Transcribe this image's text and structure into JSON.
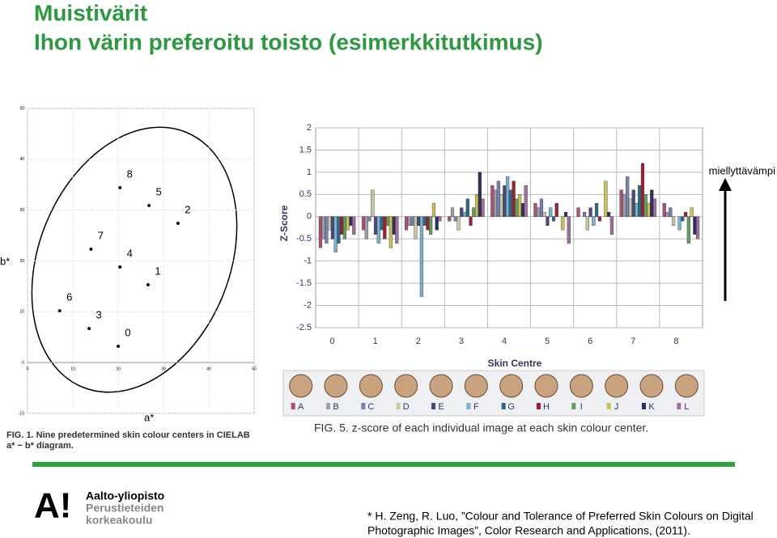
{
  "title": "Muistivärit",
  "subtitle": "Ihon värin preferoitu toisto (esimerkkitutkimus)",
  "annotation": "miellyttävämpi",
  "citation": [
    "* H. Zeng, R. Luo, ”Colour and Tolerance of Preferred Skin Colours on Digital",
    "Photographic Images”, Color Research and Applications, (2011)."
  ],
  "logo": {
    "mark": "A!",
    "lines": [
      "Aalto-yliopisto",
      "Perustieteiden",
      "korkeakoulu"
    ]
  },
  "chart_data": [
    {
      "type": "scatter",
      "xlabel": "a*",
      "ylabel": "b*",
      "caption": [
        "FIG. 1.  Nine predetermined skin colour centers in CIELAB",
        "a* − b* diagram."
      ],
      "point_labels": [
        "0",
        "1",
        "2",
        "3",
        "4",
        "5",
        "6",
        "7",
        "8"
      ],
      "x": [
        20,
        26.6,
        33.2,
        13.6,
        20.4,
        26.8,
        7.1,
        14,
        20.4
      ],
      "values": [
        3.2,
        15.3,
        27.4,
        6.7,
        18.8,
        30.9,
        10.2,
        22.3,
        34.4
      ],
      "color": "#111111",
      "xlim": [
        0,
        50
      ],
      "xticks": [
        0,
        10,
        20,
        30,
        40,
        50
      ],
      "ylim": [
        -10,
        50
      ],
      "yticks": [
        -10,
        0,
        10,
        20,
        30,
        40,
        50
      ],
      "grid": true
    },
    {
      "type": "bar",
      "xlabel": "Skin Centre",
      "ylabel": "Z-Score",
      "caption": "FIG. 5.  z-score of each individual image at each skin colour center.",
      "categories": [
        "0",
        "1",
        "2",
        "3",
        "4",
        "5",
        "6",
        "7",
        "8"
      ],
      "ylim": [
        -2.5,
        2
      ],
      "yticks": [
        2,
        1.5,
        1,
        0.5,
        0,
        -0.5,
        -1,
        -1.5,
        -2,
        -2.5
      ],
      "grid": true,
      "series": [
        {
          "name": "A",
          "color": "#b05070",
          "values": [
            -0.7,
            -0.3,
            -0.3,
            -0.1,
            0.7,
            0.3,
            0.2,
            0.6,
            0.3
          ]
        },
        {
          "name": "B",
          "color": "#9aa0a8",
          "values": [
            -0.5,
            -0.5,
            -0.2,
            0.2,
            0.6,
            0.2,
            0,
            0.5,
            0.1
          ]
        },
        {
          "name": "C",
          "color": "#7a7fb5",
          "values": [
            -0.6,
            -0.1,
            -0.2,
            -0.1,
            0.8,
            0.4,
            0.1,
            0.9,
            0.2
          ]
        },
        {
          "name": "D",
          "color": "#c7c9a0",
          "values": [
            -0.3,
            0.6,
            -0.5,
            -0.3,
            0.5,
            0.1,
            -0.3,
            0.4,
            -0.2
          ]
        },
        {
          "name": "E",
          "color": "#4a4a7a",
          "values": [
            -0.5,
            -0.4,
            -0.2,
            0.2,
            0.7,
            -0.2,
            0.2,
            0.6,
            0
          ]
        },
        {
          "name": "F",
          "color": "#7ab0d0",
          "values": [
            -0.8,
            -0.6,
            -1.8,
            0.1,
            0.9,
            0.2,
            -0.2,
            0.3,
            -0.3
          ]
        },
        {
          "name": "G",
          "color": "#2a6a8a",
          "values": [
            -0.6,
            -0.3,
            -0.2,
            0.4,
            0.6,
            -0.1,
            0.3,
            0.7,
            -0.1
          ]
        },
        {
          "name": "H",
          "color": "#a02030",
          "values": [
            -0.4,
            -0.5,
            -0.3,
            -0.2,
            0.8,
            0.3,
            -0.1,
            1.2,
            0.1
          ]
        },
        {
          "name": "I",
          "color": "#60a060",
          "values": [
            -0.5,
            -0.2,
            -0.4,
            0.2,
            0.4,
            0,
            0,
            0.5,
            -0.6
          ]
        },
        {
          "name": "J",
          "color": "#d0c050",
          "values": [
            -0.3,
            -0.7,
            0.3,
            0.5,
            0.5,
            -0.3,
            0.8,
            0.3,
            0.2
          ]
        },
        {
          "name": "K",
          "color": "#303060",
          "values": [
            -0.2,
            -0.4,
            -0.3,
            1,
            0.3,
            0.1,
            0.1,
            0.6,
            -0.4
          ]
        },
        {
          "name": "L",
          "color": "#a070a0",
          "values": [
            -0.4,
            -0.6,
            -0.1,
            0.4,
            0.7,
            -0.6,
            -0.4,
            0.4,
            -0.5
          ]
        }
      ]
    }
  ]
}
